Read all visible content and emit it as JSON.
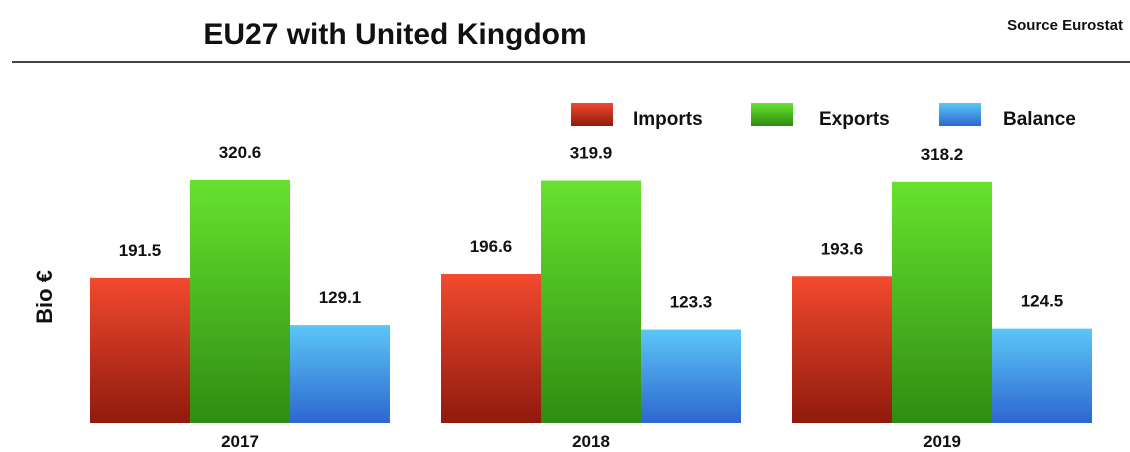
{
  "chart_data": {
    "type": "bar",
    "title": "EU27 with United Kingdom",
    "source": "Source Eurostat",
    "ylabel": "Bio €",
    "xlabel": "",
    "categories": [
      "2017",
      "2018",
      "2019"
    ],
    "series": [
      {
        "name": "Imports",
        "values": [
          191.5,
          196.6,
          193.6
        ],
        "color_top": "#f24a2e",
        "color_bottom": "#8f1a0c"
      },
      {
        "name": "Exports",
        "values": [
          320.6,
          319.9,
          318.2
        ],
        "color_top": "#66e22e",
        "color_bottom": "#2f8c12"
      },
      {
        "name": "Balance",
        "values": [
          129.1,
          123.3,
          124.5
        ],
        "color_top": "#5cc6f7",
        "color_bottom": "#2d67cf"
      }
    ],
    "ylim": [
      0,
      320.6
    ],
    "grid": false,
    "legend": "top-right",
    "data_labels": true
  }
}
